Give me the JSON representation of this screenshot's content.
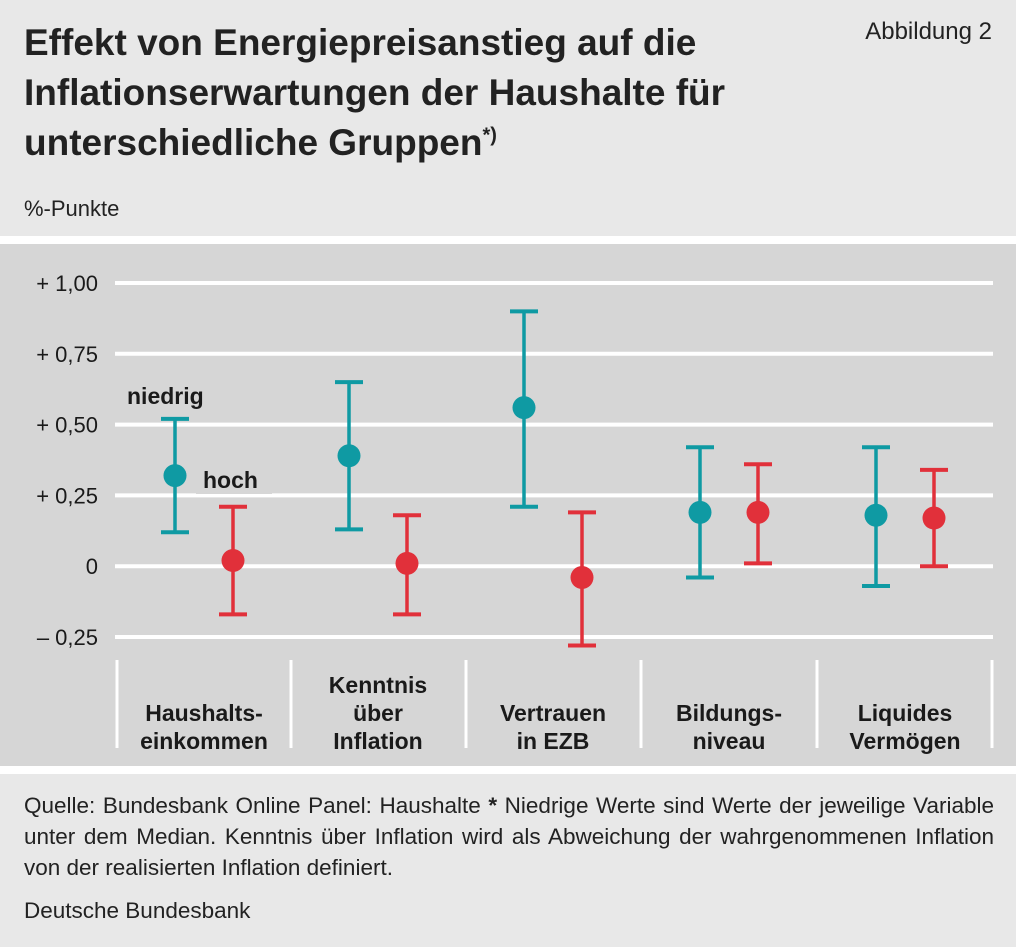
{
  "header": {
    "title_line1": "Effekt von Energiepreisanstieg auf die",
    "title_line2": "Inflationserwartungen der Haushalte für",
    "title_line3": "unterschiedliche Gruppen",
    "title_marker": "*)",
    "figure_label": "Abbildung 2"
  },
  "colors": {
    "niedrig": "#0f9aa3",
    "hoch": "#e1303a",
    "plot_background": "#d6d6d6",
    "gridline": "#ffffff"
  },
  "chart_data": {
    "type": "errorbar",
    "unit_label": "%-Punkte",
    "ylim": [
      -0.28,
      1.0
    ],
    "y_ticks": [
      1.0,
      0.75,
      0.5,
      0.25,
      0,
      -0.25
    ],
    "y_tick_labels": [
      "+ 1,00",
      "+ 0,75",
      "+ 0,50",
      "+ 0,25",
      "0",
      "– 0,25"
    ],
    "grid": true,
    "categories": [
      [
        "Haushalts-",
        "einkommen"
      ],
      [
        "Kenntnis",
        "über",
        "Inflation"
      ],
      [
        "Vertrauen",
        "in EZB"
      ],
      [
        "Bildungs-",
        "niveau"
      ],
      [
        "Liquides",
        "Vermögen"
      ]
    ],
    "series": [
      {
        "name": "niedrig",
        "values": [
          0.32,
          0.39,
          0.56,
          0.19,
          0.18
        ],
        "lower": [
          0.12,
          0.13,
          0.21,
          -0.04,
          -0.07
        ],
        "upper": [
          0.52,
          0.65,
          0.9,
          0.42,
          0.42
        ]
      },
      {
        "name": "hoch",
        "values": [
          0.02,
          0.01,
          -0.04,
          0.19,
          0.17
        ],
        "lower": [
          -0.17,
          -0.17,
          -0.28,
          0.01,
          0.0
        ],
        "upper": [
          0.21,
          0.18,
          0.19,
          0.36,
          0.34
        ]
      }
    ]
  },
  "footer": {
    "note_lead": "Quelle: Bundesbank Online Panel: Haushalte ",
    "note_marker": "*",
    "note_text": " Niedrige Werte sind Werte der jeweilige Variable unter dem Median. Kenntnis über Inflation wird als Abweichung der wahrgenommenen Inflation von der realisierten Inflation definiert.",
    "source": "Deutsche Bundesbank"
  }
}
